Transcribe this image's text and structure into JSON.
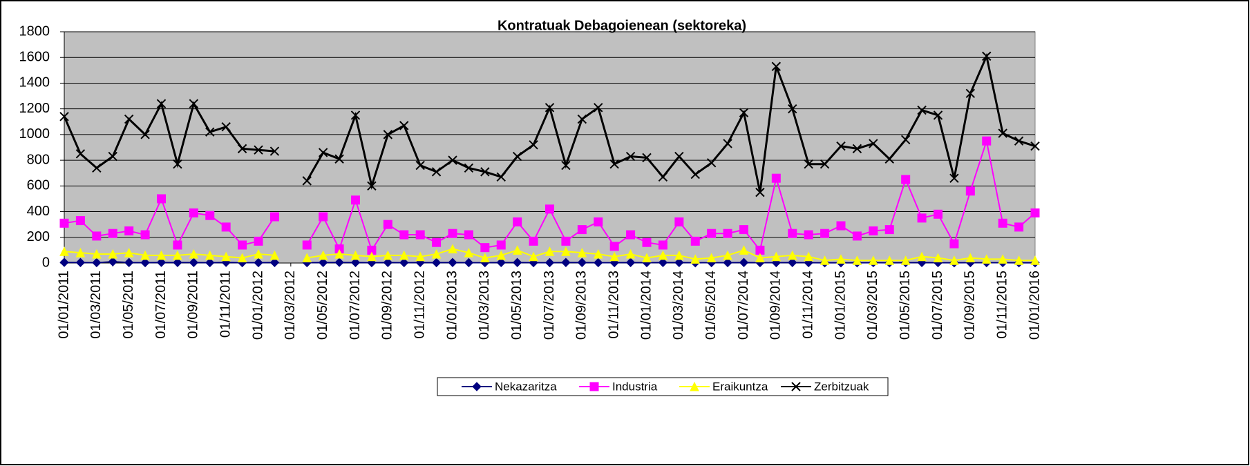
{
  "chart_data": {
    "type": "line",
    "title": "Kontratuak Debagoienean (sektoreka)",
    "categories": [
      "01/01/2011",
      null,
      "01/03/2011",
      null,
      "01/05/2011",
      null,
      "01/07/2011",
      null,
      "01/09/2011",
      null,
      "01/11/2011",
      null,
      "01/01/2012",
      null,
      "01/03/2012",
      null,
      "01/05/2012",
      null,
      "01/07/2012",
      null,
      "01/09/2012",
      null,
      "01/11/2012",
      null,
      "01/01/2013",
      null,
      "01/03/2013",
      null,
      "01/05/2013",
      null,
      "01/07/2013",
      null,
      "01/09/2013",
      null,
      "01/11/2013",
      null,
      "01/01/2014",
      null,
      "01/03/2014",
      null,
      "01/05/2014",
      null,
      "01/07/2014",
      null,
      "01/09/2014",
      null,
      "01/11/2014",
      null,
      "01/01/2015",
      null,
      "01/03/2015",
      null,
      "01/05/2015",
      null,
      "01/07/2015",
      null,
      "01/09/2015",
      null,
      "01/11/2015",
      null,
      "01/01/2016"
    ],
    "series": [
      {
        "name": "Nekazaritza",
        "color": "#000080",
        "marker": "diamond",
        "values": [
          5,
          4,
          3,
          10,
          4,
          3,
          5,
          4,
          4,
          3,
          5,
          3,
          3,
          4,
          null,
          3,
          4,
          5,
          4,
          3,
          4,
          3,
          4,
          3,
          4,
          3,
          3,
          4,
          4,
          3,
          3,
          4,
          4,
          3,
          3,
          4,
          3,
          4,
          4,
          2,
          3,
          3,
          4,
          3,
          3,
          4,
          3,
          2,
          2,
          2,
          3,
          2,
          3,
          4,
          3,
          2,
          3,
          3,
          3,
          2,
          2
        ]
      },
      {
        "name": "Industria",
        "color": "#ff00ff",
        "marker": "square",
        "values": [
          310,
          330,
          210,
          230,
          250,
          220,
          500,
          140,
          390,
          370,
          280,
          140,
          170,
          360,
          null,
          140,
          360,
          110,
          490,
          100,
          300,
          220,
          220,
          160,
          230,
          220,
          120,
          140,
          320,
          170,
          420,
          170,
          260,
          320,
          130,
          220,
          160,
          140,
          320,
          170,
          230,
          230,
          260,
          100,
          660,
          230,
          220,
          230,
          290,
          210,
          250,
          260,
          650,
          350,
          380,
          150,
          560,
          950,
          310,
          280,
          390
        ]
      },
      {
        "name": "Eraikuntza",
        "color": "#ffff00",
        "marker": "triangle",
        "values": [
          90,
          80,
          70,
          70,
          80,
          60,
          60,
          60,
          70,
          60,
          50,
          40,
          70,
          60,
          null,
          40,
          60,
          70,
          60,
          50,
          60,
          60,
          50,
          70,
          110,
          80,
          40,
          60,
          100,
          50,
          90,
          90,
          80,
          70,
          50,
          70,
          40,
          60,
          60,
          30,
          40,
          60,
          100,
          40,
          50,
          60,
          50,
          20,
          30,
          20,
          20,
          20,
          20,
          50,
          40,
          20,
          40,
          30,
          30,
          20,
          20
        ]
      },
      {
        "name": "Zerbitzuak",
        "color": "#000000",
        "marker": "x",
        "values": [
          1140,
          850,
          740,
          830,
          1120,
          1000,
          1240,
          770,
          1240,
          1020,
          1060,
          890,
          880,
          870,
          null,
          640,
          860,
          810,
          1150,
          600,
          1000,
          1070,
          760,
          710,
          800,
          740,
          710,
          670,
          830,
          920,
          1210,
          760,
          1120,
          1210,
          770,
          830,
          820,
          670,
          830,
          690,
          780,
          930,
          1170,
          550,
          1530,
          1200,
          770,
          770,
          910,
          890,
          930,
          810,
          960,
          1190,
          1150,
          660,
          1320,
          1610,
          1010,
          950,
          910
        ]
      }
    ],
    "ylim": [
      0,
      1800
    ],
    "yticks": [
      0,
      200,
      400,
      600,
      800,
      1000,
      1200,
      1400,
      1600,
      1800
    ],
    "grid": true,
    "legend": "bottom"
  }
}
